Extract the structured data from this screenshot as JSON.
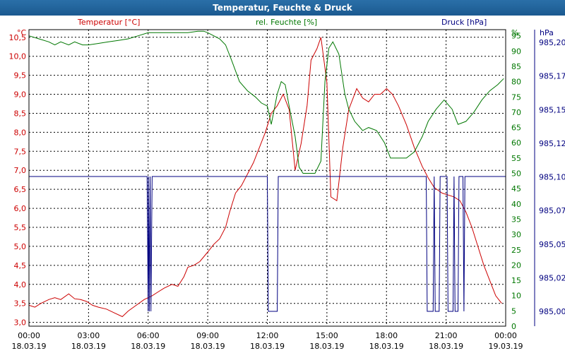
{
  "chart_data": {
    "type": "line",
    "title": "Temperatur, Feuchte & Druck",
    "x_tick_labels": [
      {
        "time": "00:00",
        "date": "18.03.19"
      },
      {
        "time": "03:00",
        "date": "18.03.19"
      },
      {
        "time": "06:00",
        "date": "18.03.19"
      },
      {
        "time": "09:00",
        "date": "18.03.19"
      },
      {
        "time": "12:00",
        "date": "18.03.19"
      },
      {
        "time": "15:00",
        "date": "18.03.19"
      },
      {
        "time": "18:00",
        "date": "18.03.19"
      },
      {
        "time": "21:00",
        "date": "18.03.19"
      },
      {
        "time": "00:00",
        "date": "19.03.19"
      }
    ],
    "x_range_hours": [
      0,
      24
    ],
    "axes": {
      "left": {
        "unit": "°C",
        "range": [
          2.9,
          10.7
        ],
        "ticks": [
          "3,0",
          "3,5",
          "4,0",
          "4,5",
          "5,0",
          "5,5",
          "6,0",
          "6,5",
          "7,0",
          "7,5",
          "8,0",
          "8,5",
          "9,0",
          "9,5",
          "10,0",
          "10,5"
        ],
        "color": "#cc0000"
      },
      "right1": {
        "unit": "%",
        "range": [
          0,
          97
        ],
        "ticks": [
          "0",
          "5",
          "10",
          "15",
          "20",
          "25",
          "30",
          "35",
          "40",
          "45",
          "50",
          "55",
          "60",
          "65",
          "70",
          "75",
          "80",
          "85",
          "90",
          "95"
        ],
        "color": "#007700"
      },
      "right2": {
        "unit": "hPa",
        "ticks": [
          "985,00",
          "985,02",
          "985,05",
          "985,07",
          "985,10",
          "985,12",
          "985,15",
          "985,17",
          "985,20"
        ],
        "color": "#000080"
      }
    },
    "grid": true,
    "series": [
      {
        "name": "Temperatur [°C]",
        "color": "#cc0000",
        "axis": "left",
        "hours": [
          0.0,
          0.3,
          0.6,
          1.0,
          1.3,
          1.6,
          2.0,
          2.3,
          2.6,
          2.9,
          3.2,
          3.5,
          3.9,
          4.3,
          4.7,
          5.0,
          5.4,
          5.8,
          6.2,
          6.5,
          6.8,
          7.2,
          7.5,
          7.8,
          8.0,
          8.3,
          8.6,
          9.0,
          9.3,
          9.6,
          9.9,
          10.1,
          10.4,
          10.7,
          11.0,
          11.3,
          11.6,
          11.9,
          12.2,
          12.5,
          12.8,
          13.1,
          13.4,
          13.7,
          14.0,
          14.2,
          14.5,
          14.7,
          15.0,
          15.2,
          15.5,
          15.8,
          16.1,
          16.5,
          16.8,
          17.1,
          17.4,
          17.7,
          18.0,
          18.3,
          18.6,
          19.0,
          19.4,
          19.8,
          20.1,
          20.4,
          20.8,
          21.1,
          21.4,
          21.7,
          22.0,
          22.3,
          22.6,
          22.9,
          23.2,
          23.5,
          23.8
        ],
        "values": [
          3.45,
          3.4,
          3.5,
          3.6,
          3.65,
          3.6,
          3.75,
          3.62,
          3.6,
          3.55,
          3.45,
          3.4,
          3.35,
          3.25,
          3.15,
          3.3,
          3.45,
          3.6,
          3.7,
          3.8,
          3.9,
          4.0,
          3.95,
          4.2,
          4.45,
          4.5,
          4.6,
          4.85,
          5.05,
          5.2,
          5.5,
          5.9,
          6.4,
          6.6,
          6.9,
          7.2,
          7.6,
          8.0,
          8.5,
          8.7,
          9.0,
          8.6,
          7.0,
          7.7,
          8.7,
          9.9,
          10.2,
          10.5,
          9.3,
          6.3,
          6.2,
          7.6,
          8.6,
          9.15,
          8.9,
          8.8,
          9.0,
          9.0,
          9.15,
          9.0,
          8.7,
          8.2,
          7.6,
          7.1,
          6.8,
          6.55,
          6.4,
          6.35,
          6.3,
          6.2,
          5.9,
          5.5,
          5.0,
          4.5,
          4.1,
          3.7,
          3.5
        ]
      },
      {
        "name": "rel. Feuchte [%]",
        "color": "#007700",
        "axis": "right1",
        "hours": [
          0.0,
          0.5,
          1.0,
          1.3,
          1.6,
          2.0,
          2.3,
          2.7,
          3.0,
          3.5,
          4.0,
          4.5,
          5.0,
          5.5,
          6.0,
          6.5,
          7.0,
          7.5,
          8.0,
          8.5,
          8.8,
          9.0,
          9.3,
          9.6,
          9.9,
          10.2,
          10.6,
          11.0,
          11.4,
          11.7,
          12.0,
          12.2,
          12.5,
          12.7,
          12.9,
          13.1,
          13.4,
          13.6,
          13.8,
          14.1,
          14.4,
          14.7,
          14.9,
          15.1,
          15.3,
          15.6,
          15.9,
          16.1,
          16.4,
          16.8,
          17.1,
          17.5,
          17.9,
          18.2,
          18.6,
          19.0,
          19.4,
          19.8,
          20.1,
          20.5,
          20.9,
          21.3,
          21.6,
          22.0,
          22.4,
          22.8,
          23.2,
          23.6,
          23.9
        ],
        "values": [
          95,
          94,
          93,
          92,
          93,
          92,
          93,
          92,
          92,
          92.5,
          93,
          93.5,
          94,
          95,
          96,
          96,
          96,
          96,
          96,
          96.5,
          96.5,
          96,
          95,
          94,
          92,
          87,
          80,
          77,
          75,
          73,
          72,
          66,
          76,
          80,
          79,
          72,
          62,
          52,
          50,
          50,
          50,
          54,
          80,
          91,
          93,
          89,
          76,
          71,
          67,
          64,
          65,
          64,
          60,
          55,
          55,
          55,
          57,
          62,
          67,
          71,
          74,
          71,
          66,
          67,
          70,
          74,
          77,
          79,
          81
        ]
      },
      {
        "name": "Druck [hPa]",
        "color": "#000080",
        "axis": "right2",
        "hours": [
          0.0,
          5.95,
          6.0,
          6.02,
          6.06,
          6.1,
          6.14,
          6.2,
          6.25,
          12.0,
          12.05,
          12.1,
          12.5,
          12.55,
          12.6,
          20.0,
          20.05,
          20.1,
          20.35,
          20.4,
          20.45,
          20.6,
          20.65,
          20.7,
          21.05,
          21.1,
          21.15,
          21.35,
          21.4,
          21.45,
          21.55,
          21.6,
          21.65,
          21.85,
          21.9,
          21.95,
          24.0
        ],
        "levels": [
          "high",
          "high",
          "low",
          "high",
          "low",
          "high",
          "low",
          "high",
          "high",
          "high",
          "low",
          "low",
          "low",
          "high",
          "high",
          "high",
          "low",
          "low",
          "low",
          "high",
          "low",
          "low",
          "low",
          "high",
          "high",
          "low",
          "low",
          "low",
          "high",
          "low",
          "low",
          "low",
          "high",
          "high",
          "low",
          "high",
          "high"
        ]
      }
    ]
  }
}
